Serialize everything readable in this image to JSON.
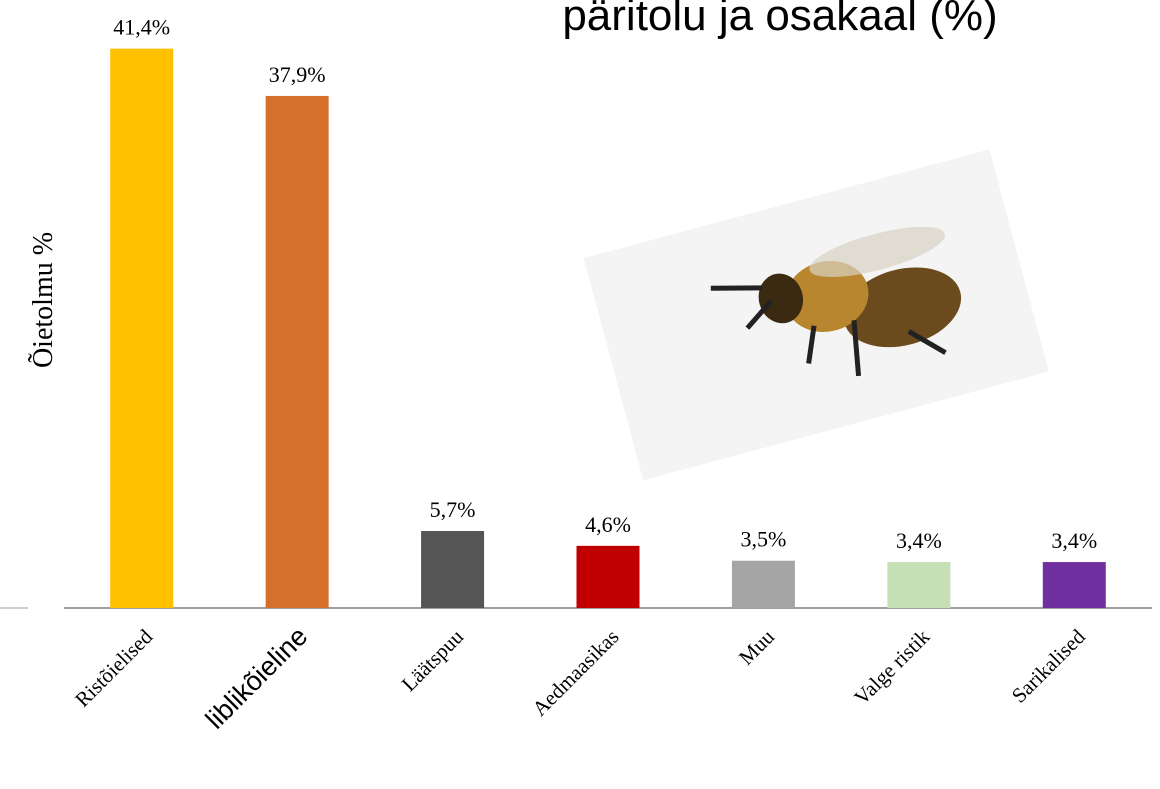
{
  "chart_data": {
    "type": "bar",
    "title": "päritolu ja osakaal (%)",
    "y_label": "Õietolmu %",
    "categories": [
      "Ristõielised",
      "liblikõieline",
      "Läätspuu",
      "Aedmaasikas",
      "Muu",
      "Valge ristik",
      "Sarikalised"
    ],
    "values": [
      41.4,
      37.9,
      5.7,
      4.6,
      3.5,
      3.4,
      3.4
    ],
    "value_labels": [
      "41,4%",
      "37,9%",
      "5,7%",
      "4,6%",
      "3,5%",
      "3,4%",
      "3,4%"
    ],
    "colors": [
      "#ffc000",
      "#d5702c",
      "#555555",
      "#c00000",
      "#a5a5a5",
      "#c5e0b4",
      "#7030a0"
    ],
    "ylim": [
      0,
      45
    ]
  }
}
